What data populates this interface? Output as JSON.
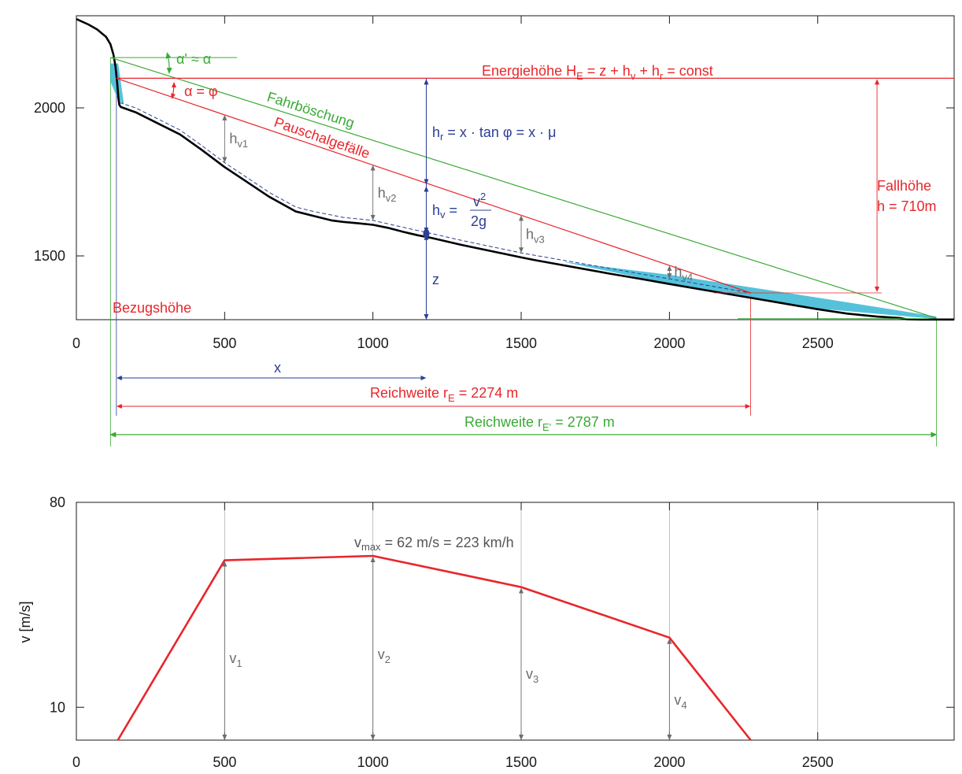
{
  "colors": {
    "red": "#e8262b",
    "green": "#3aaa35",
    "blue": "#2b3f95",
    "grey": "#6d6d6d",
    "deposit": "#37b7d4",
    "terrain": "#000000"
  },
  "chart_data": [
    {
      "type": "line",
      "panel": "profile",
      "xlim": [
        0,
        2960
      ],
      "ylim": [
        1285,
        2310
      ],
      "grid": false,
      "x_ticks": [
        0,
        500,
        1000,
        1500,
        2000,
        2500
      ],
      "y_ticks": [
        1500,
        2000
      ],
      "x_tick_labels": [
        "0",
        "500",
        "1000",
        "1500",
        "2000",
        "2500"
      ],
      "y_tick_labels": [
        "1500",
        "2000"
      ],
      "series": [
        {
          "role": "terrain",
          "x": [
            0,
            40,
            70,
            100,
            115,
            125,
            132,
            138,
            142,
            145,
            150,
            200,
            280,
            350,
            420,
            500,
            560,
            650,
            740,
            800,
            860,
            900,
            950,
            1000,
            1050,
            1100,
            1150,
            1200,
            1300,
            1400,
            1500,
            1550,
            1600,
            1700,
            1800,
            1900,
            2000,
            2100,
            2200,
            2300,
            2400,
            2500,
            2600,
            2700,
            2780,
            2800,
            2850,
            2900,
            2960
          ],
          "y": [
            2300,
            2282,
            2265,
            2240,
            2215,
            2180,
            2140,
            2080,
            2030,
            2010,
            2003,
            1985,
            1945,
            1910,
            1860,
            1800,
            1760,
            1700,
            1650,
            1635,
            1620,
            1615,
            1610,
            1605,
            1595,
            1582,
            1570,
            1560,
            1537,
            1516,
            1495,
            1485,
            1476,
            1458,
            1440,
            1423,
            1405,
            1388,
            1371,
            1354,
            1337,
            1320,
            1305,
            1295,
            1290,
            1286,
            1285,
            1285,
            1285
          ]
        },
        {
          "role": "flow-centerline",
          "x": [
            145,
            200,
            280,
            350,
            420,
            500,
            560,
            650,
            740,
            800,
            900,
            1000,
            1100,
            1200,
            1300,
            1500,
            1700,
            1900,
            2100,
            2274
          ],
          "y": [
            2018,
            2000,
            1960,
            1925,
            1875,
            1815,
            1775,
            1715,
            1665,
            1650,
            1630,
            1620,
            1597,
            1575,
            1552,
            1510,
            1475,
            1440,
            1405,
            1375
          ]
        }
      ],
      "deposits": [
        {
          "x": [
            120,
            150
          ],
          "y_top": [
            2150,
            2010
          ]
        },
        {
          "x": [
            1650,
            2900
          ],
          "y_top": [
            1490,
            1290
          ]
        }
      ],
      "annotations": {
        "energy_height": {
          "text": "Energiehöhe H",
          "sub": "E",
          "rest": " = z + h",
          "sub2": "v",
          "rest2": " + h",
          "sub3": "r",
          "rest3": " = const",
          "z": 2100
        },
        "fahrboeschung": {
          "text": "Fahrböschung",
          "from": [
            115,
            2170
          ],
          "to": [
            2900,
            1290
          ]
        },
        "pauschalgefaelle": {
          "text": "Pauschalgefälle",
          "from": [
            135,
            2100
          ],
          "to": [
            2274,
            1375
          ]
        },
        "alpha_prime": "α' ≈ α",
        "alpha_phi": "α = φ",
        "hr_formula": {
          "a": "h",
          "a_sub": "r",
          "b": " = x · tan φ = x · μ"
        },
        "hv_formula": {
          "a": "h",
          "a_sub": "v",
          "b": " = ",
          "num": "v",
          "num_sup": "2",
          "den": "2g"
        },
        "z_label": "z",
        "fallhoehe": "Fallhöhe",
        "fallhoehe_value": "h = 710m",
        "bezugshoehe": "Bezugshöhe",
        "hv_labels": [
          {
            "base": "h",
            "sub": "v1",
            "x": 500
          },
          {
            "base": "h",
            "sub": "v2",
            "x": 1000
          },
          {
            "base": "h",
            "sub": "v3",
            "x": 1500
          },
          {
            "base": "h",
            "sub": "v4",
            "x": 2000
          }
        ],
        "x_label": "x",
        "reichweite_e": {
          "text": "Reichweite r",
          "sub": "E",
          "rest": " = 2274 m"
        },
        "reichweite_e_prime": {
          "text": "Reichweite r",
          "sub": "E'",
          "rest": " = 2787 m"
        }
      }
    },
    {
      "type": "line",
      "panel": "velocity",
      "ylabel": "v [m/s]",
      "xlim": [
        0,
        2960
      ],
      "ylim": [
        0,
        80
      ],
      "grid": true,
      "x_ticks": [
        0,
        500,
        1000,
        1500,
        2000,
        2500
      ],
      "y_ticks": [
        10,
        80
      ],
      "x_tick_labels": [
        "0",
        "500",
        "1000",
        "1500",
        "2000",
        "2500"
      ],
      "y_tick_labels": [
        "10",
        "80"
      ],
      "series": [
        {
          "x": [
            140,
            500,
            1000,
            1500,
            2000,
            2274
          ],
          "y": [
            0,
            60.5,
            62,
            51.5,
            34.5,
            0
          ]
        }
      ],
      "annotations": {
        "vmax": {
          "base": "v",
          "sub": "max",
          "rest": " = 62 m/s = 223 km/h"
        },
        "v_labels": [
          {
            "base": "v",
            "sub": "1",
            "x": 500
          },
          {
            "base": "v",
            "sub": "2",
            "x": 1000
          },
          {
            "base": "v",
            "sub": "3",
            "x": 1500
          },
          {
            "base": "v",
            "sub": "4",
            "x": 2000
          }
        ]
      }
    }
  ]
}
